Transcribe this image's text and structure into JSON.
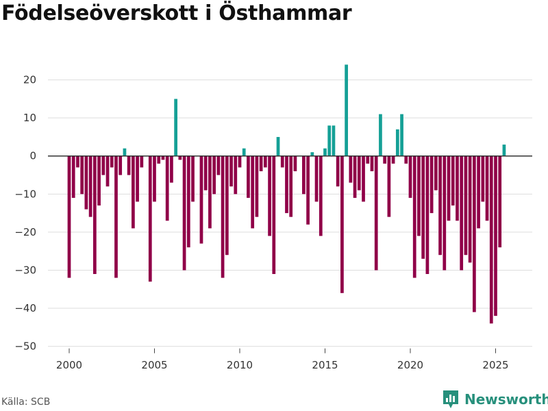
{
  "title": "Födelseöverskott i Östhammar",
  "source": "Källa: SCB",
  "brand": {
    "name": "Newsworthy",
    "icon": "newsworthy-logo-icon"
  },
  "colors": {
    "positive": "#15a096",
    "negative": "#900048",
    "grid": "#dddddd",
    "zero": "#333333",
    "brand": "#27907c"
  },
  "chart_data": {
    "type": "bar",
    "title": "Födelseöverskott i Östhammar",
    "xlabel": "",
    "ylabel": "",
    "ylim": [
      -50,
      25
    ],
    "xlim": [
      1998.75,
      2027
    ],
    "y_ticks": [
      20,
      10,
      0,
      -10,
      -20,
      -30,
      -40,
      -50
    ],
    "y_tick_labels": [
      "20",
      "10",
      "0",
      "−10",
      "−20",
      "−30",
      "−40",
      "−50"
    ],
    "x_ticks": [
      2000,
      2005,
      2010,
      2015,
      2020,
      2025
    ],
    "x_tick_labels": [
      "2000",
      "2005",
      "2010",
      "2015",
      "2020",
      "2025"
    ],
    "grid": true,
    "frequency": "quarterly",
    "start_year": 2000,
    "values": [
      -32,
      -11,
      -3,
      -10,
      -14,
      -16,
      -31,
      -13,
      -5,
      -8,
      -3,
      -32,
      -5,
      2,
      -5,
      -19,
      -12,
      -3,
      0,
      -33,
      -12,
      -2,
      -1,
      -17,
      -7,
      15,
      -1,
      -30,
      -24,
      -12,
      0,
      -23,
      -9,
      -19,
      -10,
      -5,
      -32,
      -26,
      -8,
      -10,
      -3,
      2,
      -11,
      -19,
      -16,
      -4,
      -3,
      -21,
      -31,
      5,
      -3,
      -15,
      -16,
      -4,
      0,
      -10,
      -18,
      1,
      -12,
      -21,
      2,
      8,
      8,
      -8,
      -36,
      24,
      -7,
      -11,
      -9,
      -12,
      -2,
      -4,
      -30,
      11,
      -2,
      -16,
      -2,
      7,
      11,
      -2,
      -11,
      -32,
      -21,
      -27,
      -31,
      -15,
      -9,
      -26,
      -30,
      -17,
      -13,
      -17,
      -30,
      -26,
      -28,
      -41,
      -19,
      -12,
      -17,
      -44,
      -42,
      -24,
      3
    ]
  }
}
